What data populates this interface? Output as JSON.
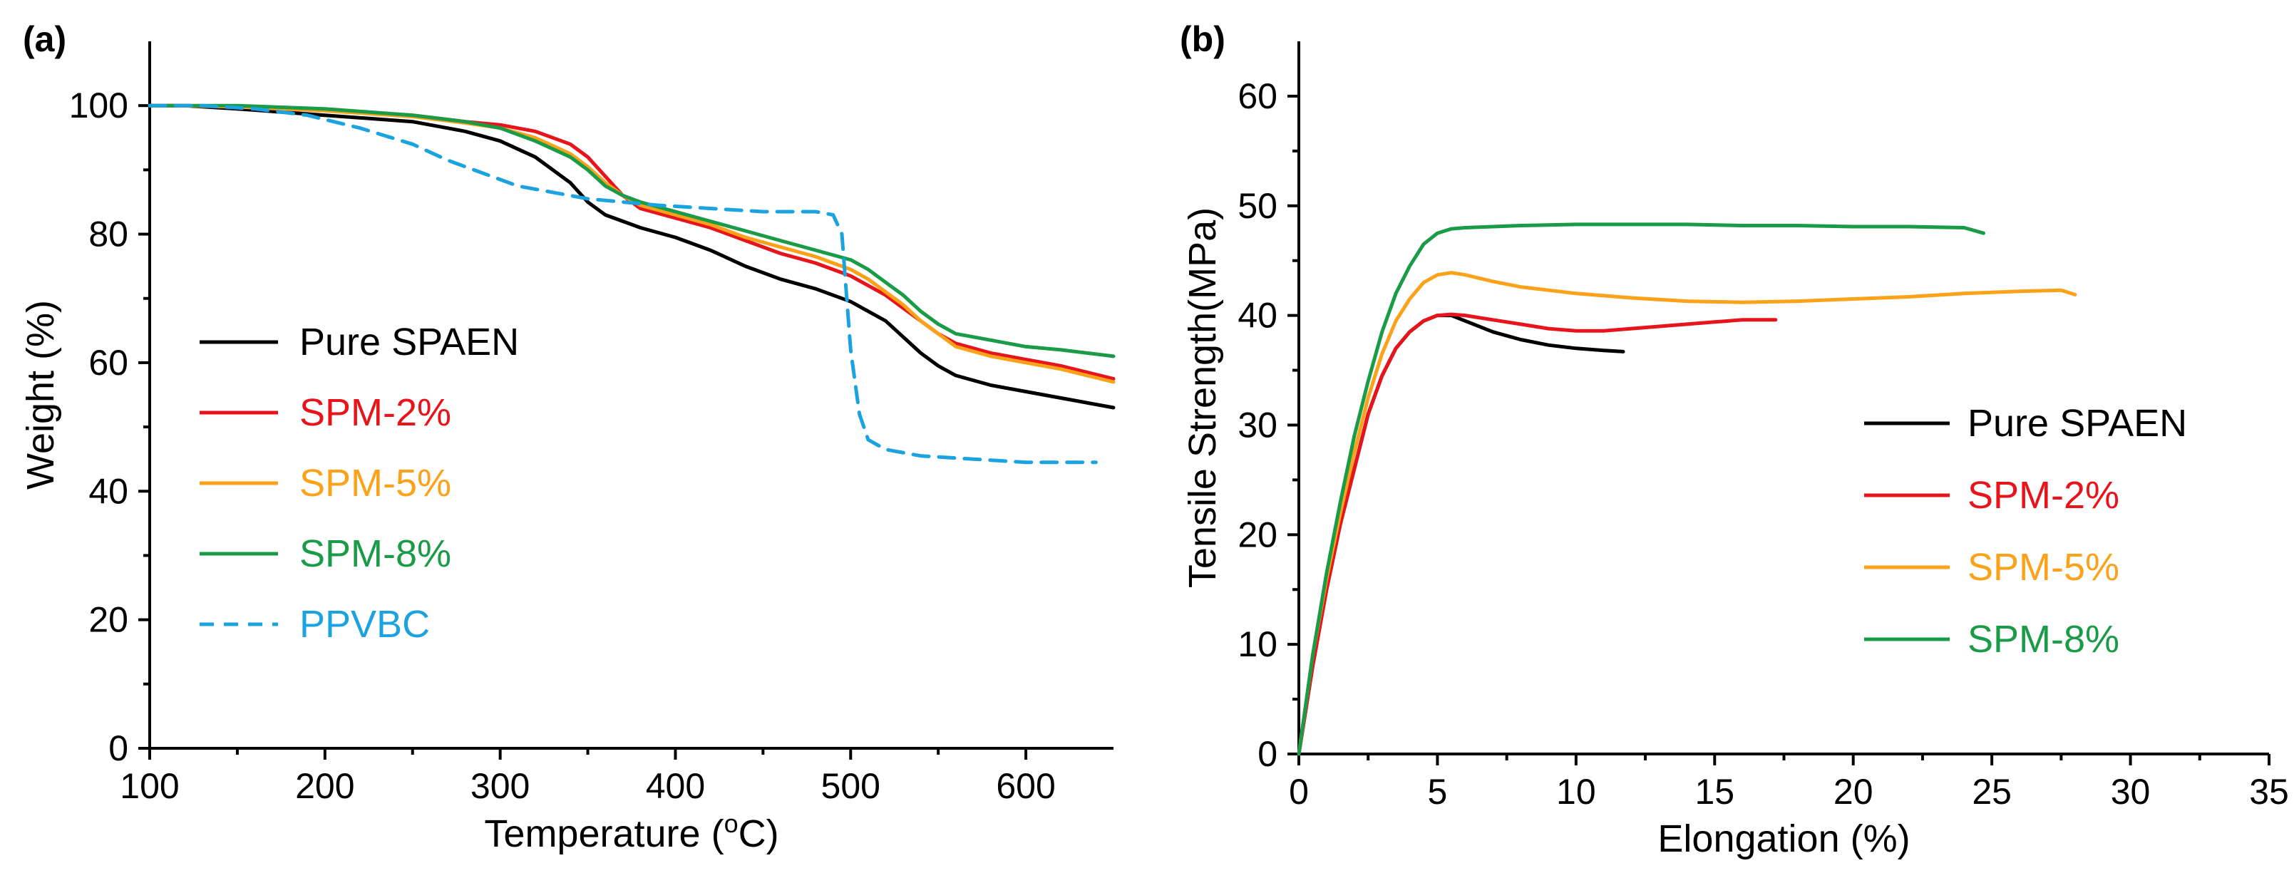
{
  "chart_data": [
    {
      "panel_label": "(a)",
      "type": "line",
      "title": "",
      "xlabel": "Temperature (",
      "xlabel_sup": "o",
      "xlabel_end": "C)",
      "ylabel": "Weight (%)",
      "xlim": [
        100,
        650
      ],
      "ylim": [
        0,
        110
      ],
      "xticks": [
        100,
        200,
        300,
        400,
        500,
        600
      ],
      "xtick_labels": [
        "100",
        "200",
        "300",
        "400",
        "500",
        "600"
      ],
      "xminor": [
        150,
        250,
        350,
        450,
        550
      ],
      "yticks": [
        0,
        20,
        40,
        60,
        80,
        100
      ],
      "ytick_labels": [
        "0",
        "20",
        "40",
        "60",
        "80",
        "100"
      ],
      "yminor": [
        10,
        30,
        50,
        70,
        90
      ],
      "legend_position": "lower-left",
      "series": [
        {
          "name": "Pure SPAEN",
          "color": "#000000",
          "dash": "solid",
          "x": [
            100,
            120,
            150,
            200,
            250,
            280,
            300,
            320,
            340,
            350,
            360,
            370,
            380,
            400,
            420,
            440,
            460,
            480,
            500,
            510,
            520,
            530,
            540,
            550,
            560,
            580,
            600,
            620,
            650
          ],
          "y": [
            100,
            100,
            99.5,
            98.5,
            97.5,
            96,
            94.5,
            92,
            88,
            85,
            83,
            82,
            81,
            79.5,
            77.5,
            75,
            73,
            71.5,
            69.5,
            68,
            66.5,
            64,
            61.5,
            59.5,
            58,
            56.5,
            55.5,
            54.5,
            53
          ]
        },
        {
          "name": "SPM-2%",
          "color": "#e8141b",
          "dash": "solid",
          "x": [
            100,
            120,
            150,
            200,
            250,
            280,
            300,
            320,
            340,
            350,
            360,
            370,
            380,
            400,
            420,
            440,
            460,
            480,
            500,
            510,
            520,
            530,
            540,
            550,
            560,
            580,
            600,
            620,
            650
          ],
          "y": [
            100,
            100,
            99.8,
            99.3,
            98.5,
            97.5,
            97,
            96,
            94,
            92,
            89,
            86,
            84,
            82.5,
            81,
            79,
            77,
            75.5,
            73.5,
            72,
            70.5,
            68.5,
            66.5,
            64.5,
            63,
            61.5,
            60.5,
            59.5,
            57.5
          ]
        },
        {
          "name": "SPM-5%",
          "color": "#fba21a",
          "dash": "solid",
          "x": [
            100,
            120,
            150,
            200,
            250,
            280,
            300,
            320,
            340,
            350,
            360,
            370,
            380,
            400,
            420,
            440,
            460,
            480,
            500,
            510,
            520,
            530,
            540,
            550,
            560,
            580,
            600,
            620,
            650
          ],
          "y": [
            100,
            100,
            99.8,
            99.2,
            98.3,
            97.3,
            96.5,
            95,
            92.5,
            90.5,
            88,
            86,
            84.5,
            83,
            81.5,
            79.5,
            78,
            76.5,
            74.5,
            73,
            71,
            69,
            66.5,
            64.5,
            62.5,
            61,
            60,
            59,
            57
          ]
        },
        {
          "name": "SPM-8%",
          "color": "#1a9b47",
          "dash": "solid",
          "x": [
            100,
            120,
            150,
            200,
            250,
            280,
            300,
            320,
            340,
            350,
            360,
            370,
            380,
            400,
            420,
            440,
            460,
            480,
            500,
            510,
            520,
            530,
            540,
            550,
            560,
            580,
            600,
            620,
            650
          ],
          "y": [
            100,
            100,
            100,
            99.5,
            98.5,
            97.5,
            96.5,
            94.5,
            92,
            90,
            87.5,
            86,
            85,
            83.5,
            82,
            80.5,
            79,
            77.5,
            76,
            74.5,
            72.5,
            70.5,
            68,
            66,
            64.5,
            63.5,
            62.5,
            62,
            61
          ]
        },
        {
          "name": "PPVBC",
          "color": "#1ba3e0",
          "dash": "dashed",
          "x": [
            100,
            130,
            160,
            190,
            220,
            250,
            270,
            290,
            310,
            330,
            350,
            370,
            390,
            420,
            450,
            470,
            480,
            490,
            495,
            500,
            505,
            510,
            520,
            540,
            570,
            600,
            640
          ],
          "y": [
            100,
            100,
            99.5,
            98.5,
            96.5,
            94,
            91.5,
            89.5,
            87.5,
            86.5,
            85.5,
            85,
            84.5,
            84,
            83.5,
            83.5,
            83.5,
            83,
            80,
            62,
            52,
            48,
            46.5,
            45.5,
            45,
            44.5,
            44.5
          ]
        }
      ]
    },
    {
      "panel_label": "(b)",
      "type": "line",
      "title": "",
      "xlabel": "Elongation (%)",
      "ylabel": "Tensile Strength(MPa)",
      "xlim": [
        0,
        35
      ],
      "ylim": [
        0,
        65
      ],
      "xticks": [
        0,
        5,
        10,
        15,
        20,
        25,
        30,
        35
      ],
      "xtick_labels": [
        "0",
        "5",
        "10",
        "15",
        "20",
        "25",
        "30",
        "35"
      ],
      "xminor": [
        2.5,
        7.5,
        12.5,
        17.5,
        22.5,
        27.5,
        32.5
      ],
      "yticks": [
        0,
        10,
        20,
        30,
        40,
        50,
        60
      ],
      "ytick_labels": [
        "0",
        "10",
        "20",
        "30",
        "40",
        "50",
        "60"
      ],
      "yminor": [
        5,
        15,
        25,
        35,
        45,
        55
      ],
      "legend_position": "lower-right",
      "series": [
        {
          "name": "Pure SPAEN",
          "color": "#000000",
          "dash": "solid",
          "x": [
            0,
            0.5,
            1,
            1.5,
            2,
            2.5,
            3,
            3.5,
            4,
            4.5,
            5,
            5.5,
            6,
            7,
            8,
            9,
            10,
            11,
            11.7
          ],
          "y": [
            0,
            8,
            15,
            21,
            26,
            31,
            34.5,
            37,
            38.5,
            39.5,
            40,
            40,
            39.5,
            38.5,
            37.8,
            37.3,
            37,
            36.8,
            36.7
          ]
        },
        {
          "name": "SPM-2%",
          "color": "#e8141b",
          "dash": "solid",
          "x": [
            0,
            0.5,
            1,
            1.5,
            2,
            2.5,
            3,
            3.5,
            4,
            4.5,
            5,
            5.5,
            6,
            7,
            8,
            9,
            10,
            11,
            12,
            13,
            14,
            15,
            16,
            17.2
          ],
          "y": [
            0,
            8,
            15,
            21,
            26,
            31,
            34.5,
            37,
            38.5,
            39.5,
            40,
            40.1,
            40,
            39.6,
            39.2,
            38.8,
            38.6,
            38.6,
            38.8,
            39,
            39.2,
            39.4,
            39.6,
            39.6
          ]
        },
        {
          "name": "SPM-5%",
          "color": "#fba21a",
          "dash": "solid",
          "x": [
            0,
            0.5,
            1,
            1.5,
            2,
            2.5,
            3,
            3.5,
            4,
            4.5,
            5,
            5.5,
            6,
            7,
            8,
            10,
            12,
            14,
            16,
            18,
            20,
            22,
            24,
            26,
            27.5,
            28
          ],
          "y": [
            0,
            9,
            16,
            22,
            27.5,
            32.5,
            36.5,
            39.5,
            41.5,
            43,
            43.7,
            43.9,
            43.7,
            43.1,
            42.6,
            42,
            41.6,
            41.3,
            41.2,
            41.3,
            41.5,
            41.7,
            42,
            42.2,
            42.3,
            41.9
          ]
        },
        {
          "name": "SPM-8%",
          "color": "#1a9b47",
          "dash": "solid",
          "x": [
            0,
            0.5,
            1,
            1.5,
            2,
            2.5,
            3,
            3.5,
            4,
            4.5,
            5,
            5.5,
            6,
            7,
            8,
            10,
            12,
            14,
            16,
            18,
            20,
            22,
            24,
            24.7
          ],
          "y": [
            0,
            9,
            16.5,
            23,
            29,
            34,
            38.5,
            42,
            44.5,
            46.5,
            47.5,
            47.9,
            48,
            48.1,
            48.2,
            48.3,
            48.3,
            48.3,
            48.2,
            48.2,
            48.1,
            48.1,
            48,
            47.5
          ]
        }
      ]
    }
  ]
}
